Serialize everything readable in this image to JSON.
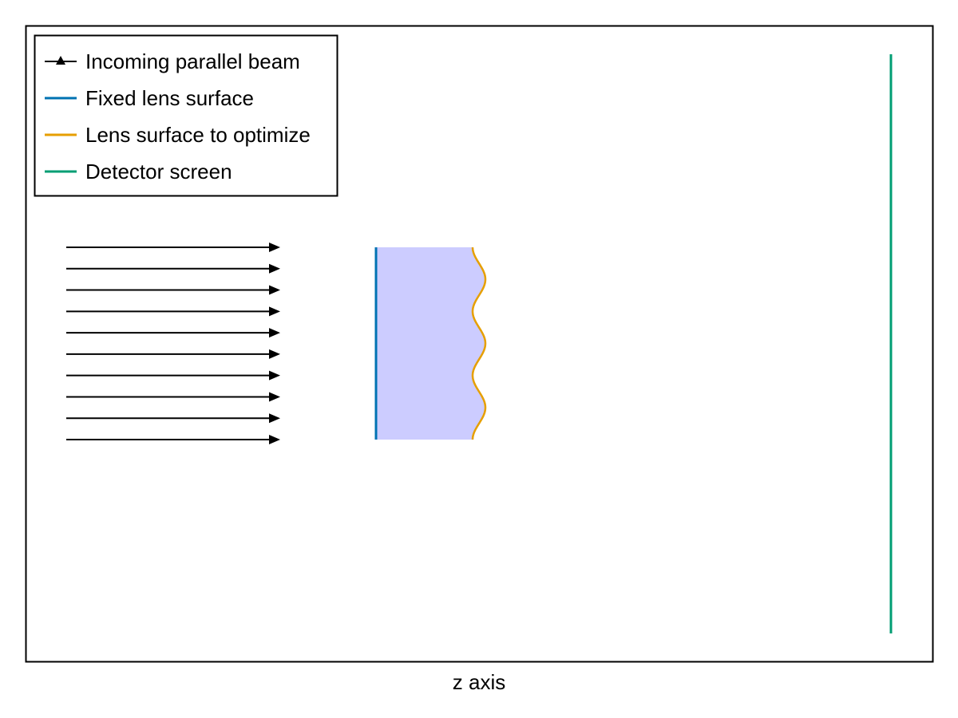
{
  "legend": {
    "placement": "top-left",
    "items": [
      {
        "label": "Incoming parallel beam",
        "color": "#000000",
        "symbol": "arrow"
      },
      {
        "label": "Fixed lens surface",
        "color": "#0072b2",
        "symbol": "line"
      },
      {
        "label": "Lens surface to optimize",
        "color": "#e69f00",
        "symbol": "line"
      },
      {
        "label": "Detector screen",
        "color": "#009e73",
        "symbol": "line"
      }
    ]
  },
  "axes": {
    "xlabel": "z axis"
  },
  "diagram": {
    "beam": {
      "ray_count": 10,
      "color": "#000000"
    },
    "lens": {
      "fill_color": "#ccccff",
      "optimize_surface_oscillations": 3
    },
    "detector": {
      "color": "#009e73"
    }
  }
}
